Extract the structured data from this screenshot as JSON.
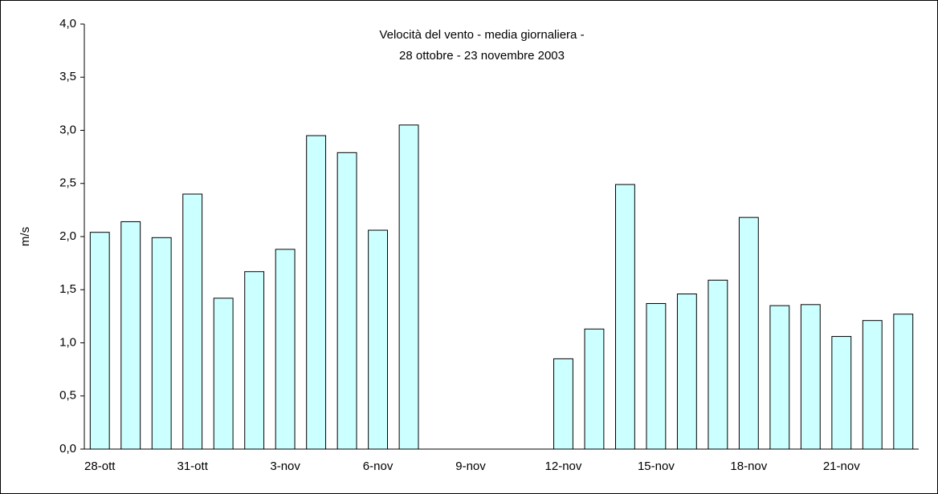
{
  "chart_data": {
    "type": "bar",
    "title": [
      "Velocità del vento - media giornaliera -",
      "28 ottobre - 23 novembre 2003"
    ],
    "y_label": "m/s",
    "categories": [
      "28-ott",
      null,
      null,
      "31-ott",
      null,
      null,
      "3-nov",
      null,
      null,
      "6-nov",
      null,
      null,
      "9-nov",
      null,
      null,
      "12-nov",
      null,
      null,
      "15-nov",
      null,
      null,
      "18-nov",
      null,
      null,
      "21-nov",
      null,
      null
    ],
    "values": [
      2.04,
      2.14,
      1.99,
      2.4,
      1.42,
      1.67,
      1.88,
      2.95,
      2.79,
      2.06,
      3.05,
      null,
      null,
      null,
      null,
      0.85,
      1.13,
      2.49,
      1.37,
      1.46,
      1.59,
      2.18,
      1.35,
      1.36,
      1.06,
      1.21,
      1.27
    ],
    "color": "#ccffff",
    "ylim": [
      0,
      4
    ],
    "yticks": [
      {
        "value": 0,
        "label": "0,0"
      },
      {
        "value": 0.5,
        "label": "0,5"
      },
      {
        "value": 1,
        "label": "1,0"
      },
      {
        "value": 1.5,
        "label": "1,5"
      },
      {
        "value": 2,
        "label": "2,0"
      },
      {
        "value": 2.5,
        "label": "2,5"
      },
      {
        "value": 3,
        "label": "3,0"
      },
      {
        "value": 3.5,
        "label": "3,5"
      },
      {
        "value": 4,
        "label": "4,0"
      }
    ],
    "grid": false
  }
}
